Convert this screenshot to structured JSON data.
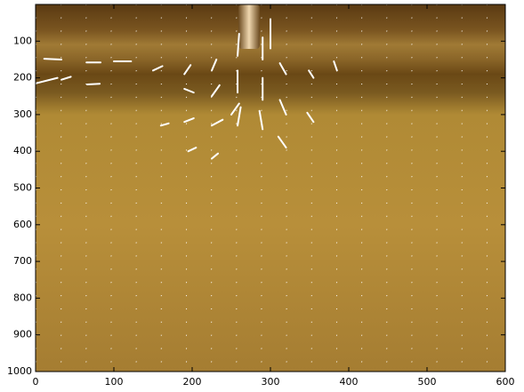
{
  "chart_data": {
    "type": "quiver",
    "xlim": [
      0,
      600
    ],
    "ylim": [
      0,
      1000
    ],
    "y_reversed": true,
    "xticks": [
      0,
      100,
      200,
      300,
      400,
      500,
      600
    ],
    "yticks": [
      100,
      200,
      300,
      400,
      500,
      600,
      700,
      800,
      900,
      1000
    ],
    "color": "#ffffff",
    "x": [
      11,
      0,
      33,
      66,
      100,
      65,
      150,
      190,
      190,
      225,
      225,
      250,
      258,
      258,
      258,
      290,
      290,
      290,
      320,
      320,
      320,
      355,
      355,
      385,
      225,
      190,
      160,
      195,
      225,
      300
    ],
    "y": [
      148,
      215,
      205,
      218,
      155,
      158,
      180,
      190,
      230,
      180,
      250,
      300,
      140,
      240,
      330,
      150,
      260,
      340,
      190,
      300,
      390,
      200,
      320,
      180,
      330,
      320,
      330,
      400,
      420,
      120
    ],
    "u": [
      22,
      28,
      12,
      16,
      22,
      18,
      12,
      8,
      12,
      6,
      10,
      10,
      2,
      0,
      4,
      0,
      0,
      -4,
      -8,
      -8,
      -10,
      -6,
      -8,
      -4,
      14,
      12,
      10,
      10,
      8,
      0
    ],
    "v": [
      2,
      -15,
      -8,
      -2,
      0,
      0,
      -12,
      -25,
      10,
      -30,
      -30,
      -30,
      -60,
      -60,
      -50,
      -60,
      -60,
      -50,
      -30,
      -40,
      -30,
      -20,
      -25,
      -25,
      -16,
      -10,
      -6,
      -10,
      -14,
      -80
    ]
  }
}
